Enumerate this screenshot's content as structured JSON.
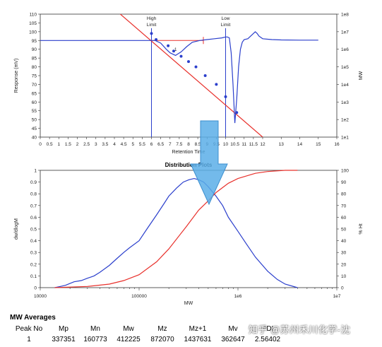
{
  "chart_data": [
    {
      "type": "line",
      "title": "",
      "xlabel": "Retention Time",
      "ylabel": "Response (mV)",
      "y2label": "MW",
      "xlim": [
        0,
        16
      ],
      "ylim": [
        40,
        110
      ],
      "y2lim_log10": [
        1,
        8
      ],
      "xticks": [
        "0",
        "0.5",
        "1",
        "1.5",
        "2",
        "2.5",
        "3",
        "3.5",
        "4",
        "4.5",
        "5",
        "5.5",
        "6",
        "6.5",
        "7",
        "7.5",
        "8",
        "8.5",
        "9",
        "9.5",
        "10",
        "10.5",
        "11",
        "11.5",
        "12",
        "13",
        "14",
        "15",
        "16"
      ],
      "xtick_values": [
        0,
        0.5,
        1,
        1.5,
        2,
        2.5,
        3,
        3.5,
        4,
        4.5,
        5,
        5.5,
        6,
        6.5,
        7,
        7.5,
        8,
        8.5,
        9,
        9.5,
        10,
        10.5,
        11,
        11.5,
        12,
        13,
        14,
        15,
        16
      ],
      "yticks": [
        "40",
        "45",
        "50",
        "55",
        "60",
        "65",
        "70",
        "75",
        "80",
        "85",
        "90",
        "95",
        "100",
        "105",
        "110"
      ],
      "y2ticks": [
        "1e1",
        "1e2",
        "1e3",
        "1e4",
        "1e5",
        "1e6",
        "1e7",
        "1e8"
      ],
      "series": [
        {
          "role": "chromatogram",
          "color": "#2b3fcc",
          "x": [
            0,
            1,
            2,
            3,
            4,
            5,
            5.8,
            6.2,
            6.5,
            6.8,
            7.0,
            7.3,
            7.6,
            7.9,
            8.2,
            8.6,
            9.0,
            9.4,
            9.8,
            10.0,
            10.1,
            10.2,
            10.3,
            10.4,
            10.5,
            10.6,
            10.7,
            10.8,
            10.9,
            11.0,
            11.2,
            11.4,
            11.6,
            11.7,
            11.8,
            12.0,
            12.5,
            13,
            14,
            15
          ],
          "y": [
            95,
            95,
            95,
            95,
            95,
            95,
            95,
            95,
            93.5,
            90,
            88,
            86.5,
            88.5,
            91.5,
            94,
            95,
            95.5,
            96,
            96.5,
            97,
            97,
            96.5,
            88,
            70,
            48,
            62,
            80,
            90,
            94,
            95.5,
            96,
            98,
            100,
            99,
            97.5,
            96,
            95.5,
            95.3,
            95.2,
            95.2
          ]
        },
        {
          "role": "calibration-line",
          "color": "#e8302b",
          "x": [
            4.1,
            12.0
          ],
          "mw_log10": [
            8.2,
            1.0
          ]
        },
        {
          "role": "calibration-points",
          "color": "#2b3fcc",
          "x": [
            6.0,
            6.25,
            6.9,
            7.2,
            7.6,
            8.0,
            8.4,
            8.9,
            9.5,
            10.0,
            10.6
          ],
          "mw_log10": [
            6.9,
            6.55,
            6.2,
            5.9,
            5.6,
            5.3,
            5.0,
            4.5,
            4.0,
            3.3,
            2.4
          ]
        }
      ],
      "annotations": [
        {
          "text": "High",
          "text2": "Limit",
          "x": 6.0,
          "color": "#2b3fcc"
        },
        {
          "text": "Low",
          "text2": "Limit",
          "x": 10.0,
          "color": "#2b3fcc"
        },
        {
          "text": "1",
          "x": 7.3,
          "y": 89
        }
      ],
      "baseline": {
        "x": [
          6.0,
          8.8
        ],
        "y": 95,
        "color": "#e8302b"
      }
    },
    {
      "type": "line",
      "title": "Distribution Plots",
      "xlabel": "MW",
      "ylabel": "dw/dlogM",
      "y2label": "% Ht",
      "x_scale": "log",
      "xlim": [
        10000,
        10000000
      ],
      "ylim": [
        0,
        1.0
      ],
      "y2lim": [
        0,
        100
      ],
      "xtick_labels": [
        {
          "value": 10000,
          "label": "10000"
        },
        {
          "value": 100000,
          "label": "100000"
        },
        {
          "value": 1000000,
          "label": "1e6"
        },
        {
          "value": 10000000,
          "label": "1e7"
        }
      ],
      "yticks": [
        "0",
        "0.1",
        "0.2",
        "0.3",
        "0.4",
        "0.5",
        "0.6",
        "0.7",
        "0.8",
        "0.9",
        "1"
      ],
      "y2ticks": [
        "0",
        "10",
        "20",
        "30",
        "40",
        "50",
        "60",
        "70",
        "80",
        "90",
        "100"
      ],
      "series": [
        {
          "role": "differential",
          "color": "#2b3fcc",
          "x": [
            14000,
            16000,
            18000,
            22000,
            26000,
            30000,
            35000,
            40000,
            50000,
            60000,
            70000,
            80000,
            100000,
            120000,
            150000,
            180000,
            200000,
            240000,
            280000,
            320000,
            360000,
            400000,
            450000,
            500000,
            600000,
            700000,
            800000,
            1000000,
            1200000,
            1500000,
            2000000,
            2500000,
            3000000,
            4000000
          ],
          "y": [
            0,
            0.01,
            0.02,
            0.05,
            0.06,
            0.08,
            0.1,
            0.13,
            0.19,
            0.25,
            0.3,
            0.34,
            0.4,
            0.5,
            0.62,
            0.72,
            0.78,
            0.85,
            0.9,
            0.92,
            0.93,
            0.92,
            0.9,
            0.86,
            0.78,
            0.7,
            0.6,
            0.48,
            0.38,
            0.26,
            0.14,
            0.07,
            0.03,
            0
          ]
        },
        {
          "role": "cumulative",
          "color": "#e8302b",
          "x": [
            14000,
            30000,
            50000,
            70000,
            100000,
            150000,
            200000,
            300000,
            400000,
            500000,
            600000,
            800000,
            1000000,
            1500000,
            2000000,
            3000000,
            4000000
          ],
          "y2": [
            0,
            1,
            3,
            6,
            11,
            22,
            33,
            52,
            66,
            74,
            81,
            89,
            93,
            97.5,
            99,
            100,
            100
          ]
        }
      ]
    }
  ],
  "mw_table": {
    "title": "MW Averages",
    "headers": [
      "Peak No",
      "Mp",
      "Mn",
      "Mw",
      "Mz",
      "Mz+1",
      "Mv",
      "PDI"
    ],
    "row": [
      "1",
      "337351",
      "160773",
      "412225",
      "872070",
      "1437631",
      "362647",
      "2.56402"
    ]
  },
  "arrow": {
    "color": "#5aaee8"
  },
  "watermark": "知乎 @苏州禾川化学-沈"
}
